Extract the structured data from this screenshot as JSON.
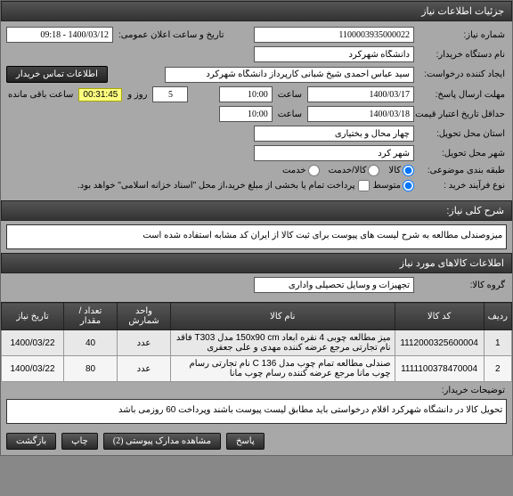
{
  "header": {
    "title": "جزئیات اطلاعات نیاز"
  },
  "fields": {
    "need_no_label": "شماره نیاز:",
    "need_no": "1100003935000022",
    "announce_label": "تاریخ و ساعت اعلان عمومی:",
    "announce_value": "1400/03/12 - 09:18",
    "buyer_org_label": "نام دستگاه خریدار:",
    "buyer_org": "دانشگاه شهرکرد",
    "creator_label": "ایجاد کننده درخواست:",
    "creator": "سید عباس احمدی شیخ شبانی کارپرداز دانشگاه شهرکرد",
    "contact_btn": "اطلاعات تماس خریدار",
    "deadline_label": "مهلت ارسال پاسخ:",
    "deadline_date": "1400/03/17",
    "time_label": "ساعت",
    "deadline_time": "10:00",
    "day_label": "روز و",
    "day_count": "5",
    "countdown": "00:31:45",
    "remain_label": "ساعت باقی مانده",
    "min_valid_label": "حداقل تاریخ اعتبار قیمت: تا تاریخ:",
    "min_valid_date": "1400/03/18",
    "min_valid_time": "10:00",
    "province_label": "استان محل تحویل:",
    "province": "چهار محال و بختیاری",
    "city_label": "شهر محل تحویل:",
    "city": "شهر کرد",
    "budget_label": "طبقه بندی موضوعی:",
    "budget_goods": "کالا",
    "budget_service": "کالا/خدمت",
    "budget_svc": "خدمت",
    "process_label": "نوع فرآیند خرید :",
    "process_mid": "متوسط",
    "process_note": "پرداخت تمام یا بخشی از مبلغ خرید،از محل \"اسناد خزانه اسلامی\" خواهد بود."
  },
  "desc_section": {
    "title": "شرح کلی نیاز:",
    "text": "میزوصندلی مطالعه به شرح لیست های پیوست برای ثبت کالا از ایران کد مشابه استفاده شده است"
  },
  "items_section": {
    "title": "اطلاعات کالاهای مورد نیاز",
    "group_label": "گروه کالا:",
    "group_value": "تجهیزات و وسایل تحصیلی واداری"
  },
  "table": {
    "headers": {
      "row": "ردیف",
      "code": "کد کالا",
      "name": "نام کالا",
      "unit": "واحد شمارش",
      "qty": "تعداد / مقدار",
      "date": "تاریخ نیاز"
    },
    "rows": [
      {
        "idx": "1",
        "code": "1112000325600004",
        "name": "میز مطالعه چوبی 4 نفره ابعاد 150x90 cm مدل T303 فاقد نام تجارتی مرجع عرضه کننده مهدی و علی جعفری",
        "unit": "عدد",
        "qty": "40",
        "date": "1400/03/22"
      },
      {
        "idx": "2",
        "code": "1111100378470004",
        "name": "صندلی مطالعه تمام چوب مدل C 136 نام تجارتی رسام چوب مانا مرجع عرضه کننده رسام چوب مانا",
        "unit": "عدد",
        "qty": "80",
        "date": "1400/03/22"
      }
    ]
  },
  "buyer_notes": {
    "label": "توضیحات خریدار:",
    "text": "تحویل کالا در دانشگاه شهرکرد اقلام درخواستی باید مطابق لیست پیوست باشند وپرداخت 60 روزمی باشد"
  },
  "footer": {
    "attach_btn": "مشاهده مدارک پیوستی (2)",
    "print_btn": "چاپ",
    "back_btn": "بازگشت",
    "answer_btn": "پاسخ"
  }
}
